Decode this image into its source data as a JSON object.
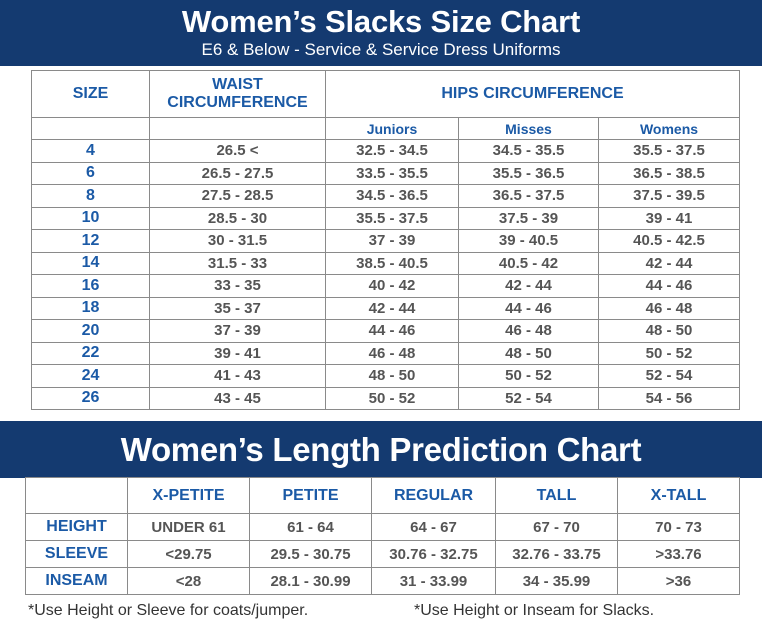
{
  "slacks": {
    "title": "Women’s Slacks Size Chart",
    "subtitle": "E6 & Below - Service & Service Dress Uniforms",
    "headers": {
      "size": "SIZE",
      "waist": "WAIST CIRCUMFERENCE",
      "hips": "HIPS CIRCUMFERENCE",
      "juniors": "Juniors",
      "misses": "Misses",
      "womens": "Womens"
    },
    "rows": [
      {
        "size": "4",
        "waist": "26.5 <",
        "juniors": "32.5 - 34.5",
        "misses": "34.5 - 35.5",
        "womens": "35.5 - 37.5"
      },
      {
        "size": "6",
        "waist": "26.5 - 27.5",
        "juniors": "33.5 - 35.5",
        "misses": "35.5 - 36.5",
        "womens": "36.5 - 38.5"
      },
      {
        "size": "8",
        "waist": "27.5 - 28.5",
        "juniors": "34.5 - 36.5",
        "misses": "36.5 - 37.5",
        "womens": "37.5 - 39.5"
      },
      {
        "size": "10",
        "waist": "28.5 - 30",
        "juniors": "35.5 - 37.5",
        "misses": "37.5 - 39",
        "womens": "39 - 41"
      },
      {
        "size": "12",
        "waist": "30 - 31.5",
        "juniors": "37 - 39",
        "misses": "39 - 40.5",
        "womens": "40.5 - 42.5"
      },
      {
        "size": "14",
        "waist": "31.5 - 33",
        "juniors": "38.5 - 40.5",
        "misses": "40.5 - 42",
        "womens": "42 - 44"
      },
      {
        "size": "16",
        "waist": "33 - 35",
        "juniors": "40 - 42",
        "misses": "42 - 44",
        "womens": "44 - 46"
      },
      {
        "size": "18",
        "waist": "35 - 37",
        "juniors": "42 - 44",
        "misses": "44 - 46",
        "womens": "46 - 48"
      },
      {
        "size": "20",
        "waist": "37 - 39",
        "juniors": "44 - 46",
        "misses": "46 - 48",
        "womens": "48 - 50"
      },
      {
        "size": "22",
        "waist": "39 - 41",
        "juniors": "46 - 48",
        "misses": "48 - 50",
        "womens": "50 - 52"
      },
      {
        "size": "24",
        "waist": "41 - 43",
        "juniors": "48 - 50",
        "misses": "50 - 52",
        "womens": "52 - 54"
      },
      {
        "size": "26",
        "waist": "43 - 45",
        "juniors": "50 - 52",
        "misses": "52 - 54",
        "womens": "54 - 56"
      }
    ]
  },
  "length": {
    "title": "Women’s Length Prediction Chart",
    "columns": [
      "X-PETITE",
      "PETITE",
      "REGULAR",
      "TALL",
      "X-TALL"
    ],
    "rows": [
      {
        "label": "HEIGHT",
        "values": [
          "UNDER 61",
          "61 - 64",
          "64 - 67",
          "67 - 70",
          "70 - 73"
        ]
      },
      {
        "label": "SLEEVE",
        "values": [
          "<29.75",
          "29.5 - 30.75",
          "30.76 - 32.75",
          "32.76 - 33.75",
          ">33.76"
        ]
      },
      {
        "label": "INSEAM",
        "values": [
          "<28",
          "28.1 - 30.99",
          "31 - 33.99",
          "34 - 35.99",
          ">36"
        ]
      }
    ]
  },
  "footnotes": {
    "left": "*Use Height or Sleeve for coats/jumper.",
    "right": "*Use Height or Inseam for Slacks."
  },
  "colors": {
    "banner": "#143a70",
    "header_text": "#1b5aa6",
    "value_text": "#555555",
    "border": "#8a8a8a"
  }
}
